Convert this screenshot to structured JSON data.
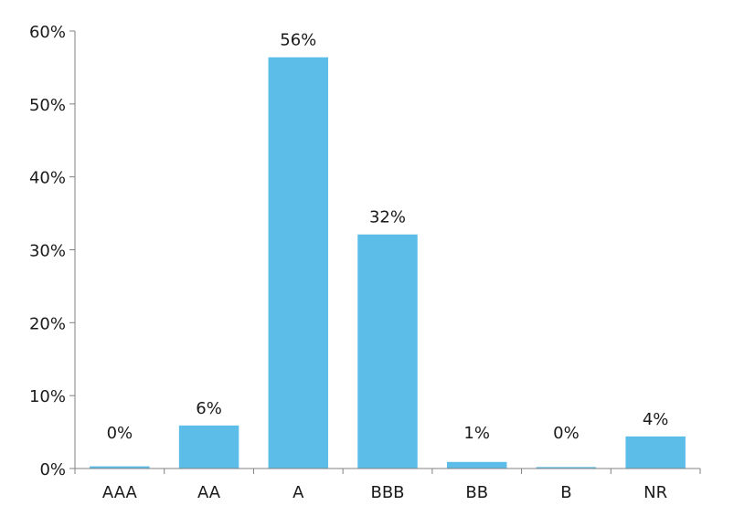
{
  "chart_data": {
    "type": "bar",
    "title": "",
    "xlabel": "",
    "ylabel": "",
    "categories": [
      "AAA",
      "AA",
      "A",
      "BBB",
      "BB",
      "B",
      "NR"
    ],
    "values": [
      0.3,
      5.9,
      56.4,
      32.1,
      0.9,
      0.2,
      4.4
    ],
    "data_labels": [
      "0%",
      "6%",
      "56%",
      "32%",
      "1%",
      "0%",
      "4%"
    ],
    "ylim": [
      0,
      60
    ],
    "y_ticks": [
      0,
      10,
      20,
      30,
      40,
      50,
      60
    ],
    "y_tick_labels": [
      "0%",
      "10%",
      "20%",
      "30%",
      "40%",
      "50%",
      "60%"
    ],
    "grid": false,
    "legend": "none",
    "bar_color": "#5BBDE8",
    "axis_color": "#808080"
  }
}
